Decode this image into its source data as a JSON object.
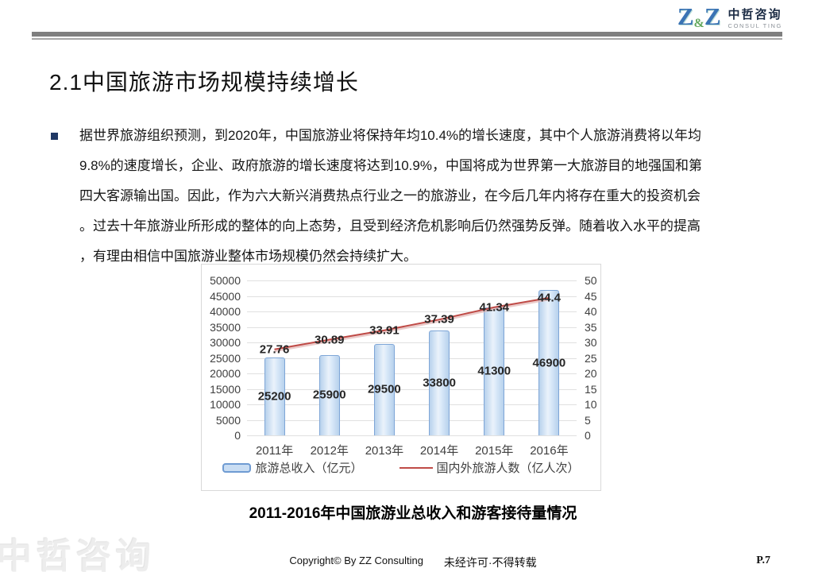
{
  "slide": {
    "logo": {
      "z_left": "Z",
      "ampersand": "&",
      "z_right": "Z",
      "name_cn": "中哲咨询",
      "name_en": "CONSUL TING"
    },
    "title": "2.1中国旅游市场规模持续增长",
    "body_lines": [
      "据世界旅游组织预测，到2020年，中国旅游业将保持年均10.4%的增长速度，其中个人旅游消费将以年均",
      "9.8%的速度增长，企业、政府旅游的增长速度将达到10.9%，中国将成为世界第一大旅游目的地强国和第",
      "四大客源输出国。因此，作为六大新兴消费热点行业之一的旅游业，在今后几年内将存在重大的投资机会",
      "。过去十年旅游业所形成的整体的向上态势，且受到经济危机影响后仍然强势反弹。随着收入水平的提高",
      "，有理由相信中国旅游业整体市场规模仍然会持续扩大。"
    ],
    "caption": "2011-2016年中国旅游业总收入和游客接待量情况",
    "footer": {
      "copyright": "Copyright© By ZZ Consulting",
      "notice": "未经许可·不得转载",
      "page": "P.7"
    },
    "watermark": "中哲咨询"
  },
  "chart_data": {
    "type": "bar",
    "subtype": "bar-line-combo",
    "categories": [
      "2011年",
      "2012年",
      "2013年",
      "2014年",
      "2015年",
      "2016年"
    ],
    "series": [
      {
        "name": "旅游总收入（亿元）",
        "type": "bar",
        "axis": "left",
        "values": [
          25200,
          25900,
          29500,
          33800,
          41300,
          46900
        ],
        "fill": "#c9ddf3",
        "border": "#7ea6d7"
      },
      {
        "name": "国内外旅游人数（亿人次）",
        "type": "line",
        "axis": "right",
        "values": [
          27.76,
          30.89,
          33.91,
          37.39,
          41.34,
          44.4
        ],
        "color": "#bf4b47"
      }
    ],
    "left_axis": {
      "min": 0,
      "max": 50000,
      "step": 5000
    },
    "right_axis": {
      "min": 0,
      "max": 50,
      "step": 5
    },
    "grid": true,
    "legend_position": "bottom",
    "title": "",
    "xlabel": "",
    "ylabel": ""
  }
}
